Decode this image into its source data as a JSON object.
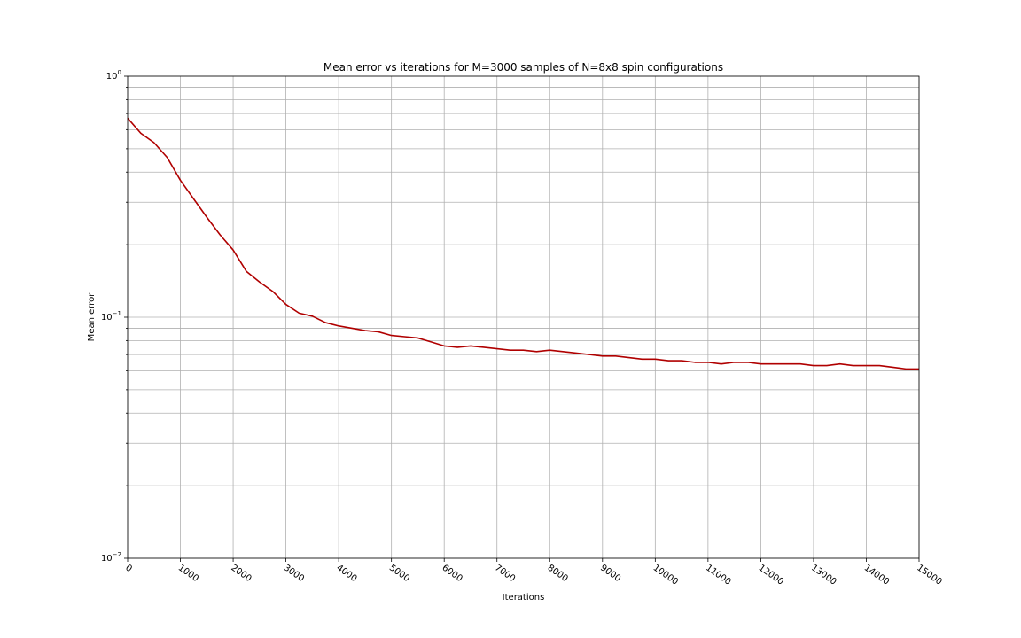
{
  "chart_data": {
    "type": "line",
    "title": "Mean error vs iterations for M=3000 samples of N=8x8 spin configurations",
    "xlabel": "Iterations",
    "ylabel": "Mean error",
    "xlim": [
      0,
      15000
    ],
    "ylim": [
      0.01,
      1
    ],
    "yscale": "log",
    "grid": true,
    "x_ticks": [
      0,
      1000,
      2000,
      3000,
      4000,
      5000,
      6000,
      7000,
      8000,
      9000,
      10000,
      11000,
      12000,
      13000,
      14000,
      15000
    ],
    "x_tick_labels": [
      "0",
      "1000",
      "2000",
      "3000",
      "4000",
      "5000",
      "6000",
      "7000",
      "8000",
      "9000",
      "10000",
      "11000",
      "12000",
      "13000",
      "14000",
      "15000"
    ],
    "y_ticks": [
      {
        "value": 0.01,
        "base": "10",
        "exp": "−2"
      },
      {
        "value": 0.1,
        "base": "10",
        "exp": "−1"
      },
      {
        "value": 1,
        "base": "10",
        "exp": "0"
      }
    ],
    "series": [
      {
        "color": "#b00000",
        "x": [
          0,
          250,
          500,
          750,
          1000,
          1250,
          1500,
          1750,
          2000,
          2250,
          2500,
          2750,
          3000,
          3250,
          3500,
          3750,
          4000,
          4250,
          4500,
          4750,
          5000,
          5250,
          5500,
          5750,
          6000,
          6250,
          6500,
          6750,
          7000,
          7250,
          7500,
          7750,
          8000,
          8250,
          8500,
          8750,
          9000,
          9250,
          9500,
          9750,
          10000,
          10250,
          10500,
          10750,
          11000,
          11250,
          11500,
          11750,
          12000,
          12250,
          12500,
          12750,
          13000,
          13250,
          13500,
          13750,
          14000,
          14250,
          14500,
          14750,
          15000
        ],
        "y": [
          0.67,
          0.58,
          0.53,
          0.46,
          0.37,
          0.31,
          0.26,
          0.22,
          0.19,
          0.155,
          0.14,
          0.128,
          0.113,
          0.104,
          0.101,
          0.095,
          0.092,
          0.09,
          0.088,
          0.087,
          0.084,
          0.083,
          0.082,
          0.079,
          0.076,
          0.075,
          0.076,
          0.075,
          0.074,
          0.073,
          0.073,
          0.072,
          0.073,
          0.072,
          0.071,
          0.07,
          0.069,
          0.069,
          0.068,
          0.067,
          0.067,
          0.066,
          0.066,
          0.065,
          0.065,
          0.064,
          0.065,
          0.065,
          0.064,
          0.064,
          0.064,
          0.064,
          0.063,
          0.063,
          0.064,
          0.063,
          0.063,
          0.063,
          0.062,
          0.061,
          0.061
        ]
      }
    ]
  }
}
